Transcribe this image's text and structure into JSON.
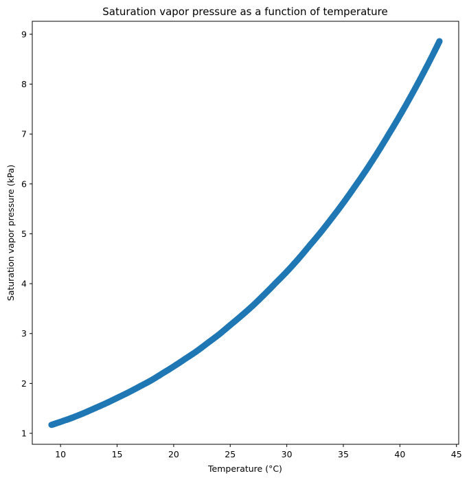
{
  "chart_data": {
    "type": "scatter",
    "title": "Saturation vapor pressure as a function of temperature",
    "xlabel": "Temperature (°C)",
    "ylabel": "Saturation vapor pressure (kPa)",
    "xlim": [
      7.5,
      45.2
    ],
    "ylim": [
      0.78,
      9.26
    ],
    "xticks": [
      10,
      15,
      20,
      25,
      30,
      35,
      40,
      45
    ],
    "yticks": [
      1,
      2,
      3,
      4,
      5,
      6,
      7,
      8,
      9
    ],
    "grid": false,
    "legend": "none",
    "colors": {
      "marker": "#1f77b4",
      "axes": "#000000",
      "background": "#ffffff"
    },
    "series": [
      {
        "x": [
          9.2,
          10,
          11,
          12,
          13,
          14,
          15,
          16,
          17,
          18,
          19,
          20,
          21,
          22,
          23,
          24,
          25,
          26,
          27,
          28,
          29,
          30,
          31,
          32,
          33,
          34,
          35,
          36,
          37,
          38,
          39,
          40,
          41,
          42,
          43,
          43.5
        ],
        "y": [
          1.17,
          1.23,
          1.31,
          1.4,
          1.5,
          1.6,
          1.71,
          1.82,
          1.94,
          2.06,
          2.2,
          2.34,
          2.49,
          2.64,
          2.81,
          2.98,
          3.17,
          3.36,
          3.56,
          3.78,
          4.01,
          4.24,
          4.49,
          4.76,
          5.03,
          5.32,
          5.62,
          5.94,
          6.27,
          6.62,
          6.99,
          7.37,
          7.77,
          8.19,
          8.63,
          8.86
        ]
      }
    ]
  }
}
